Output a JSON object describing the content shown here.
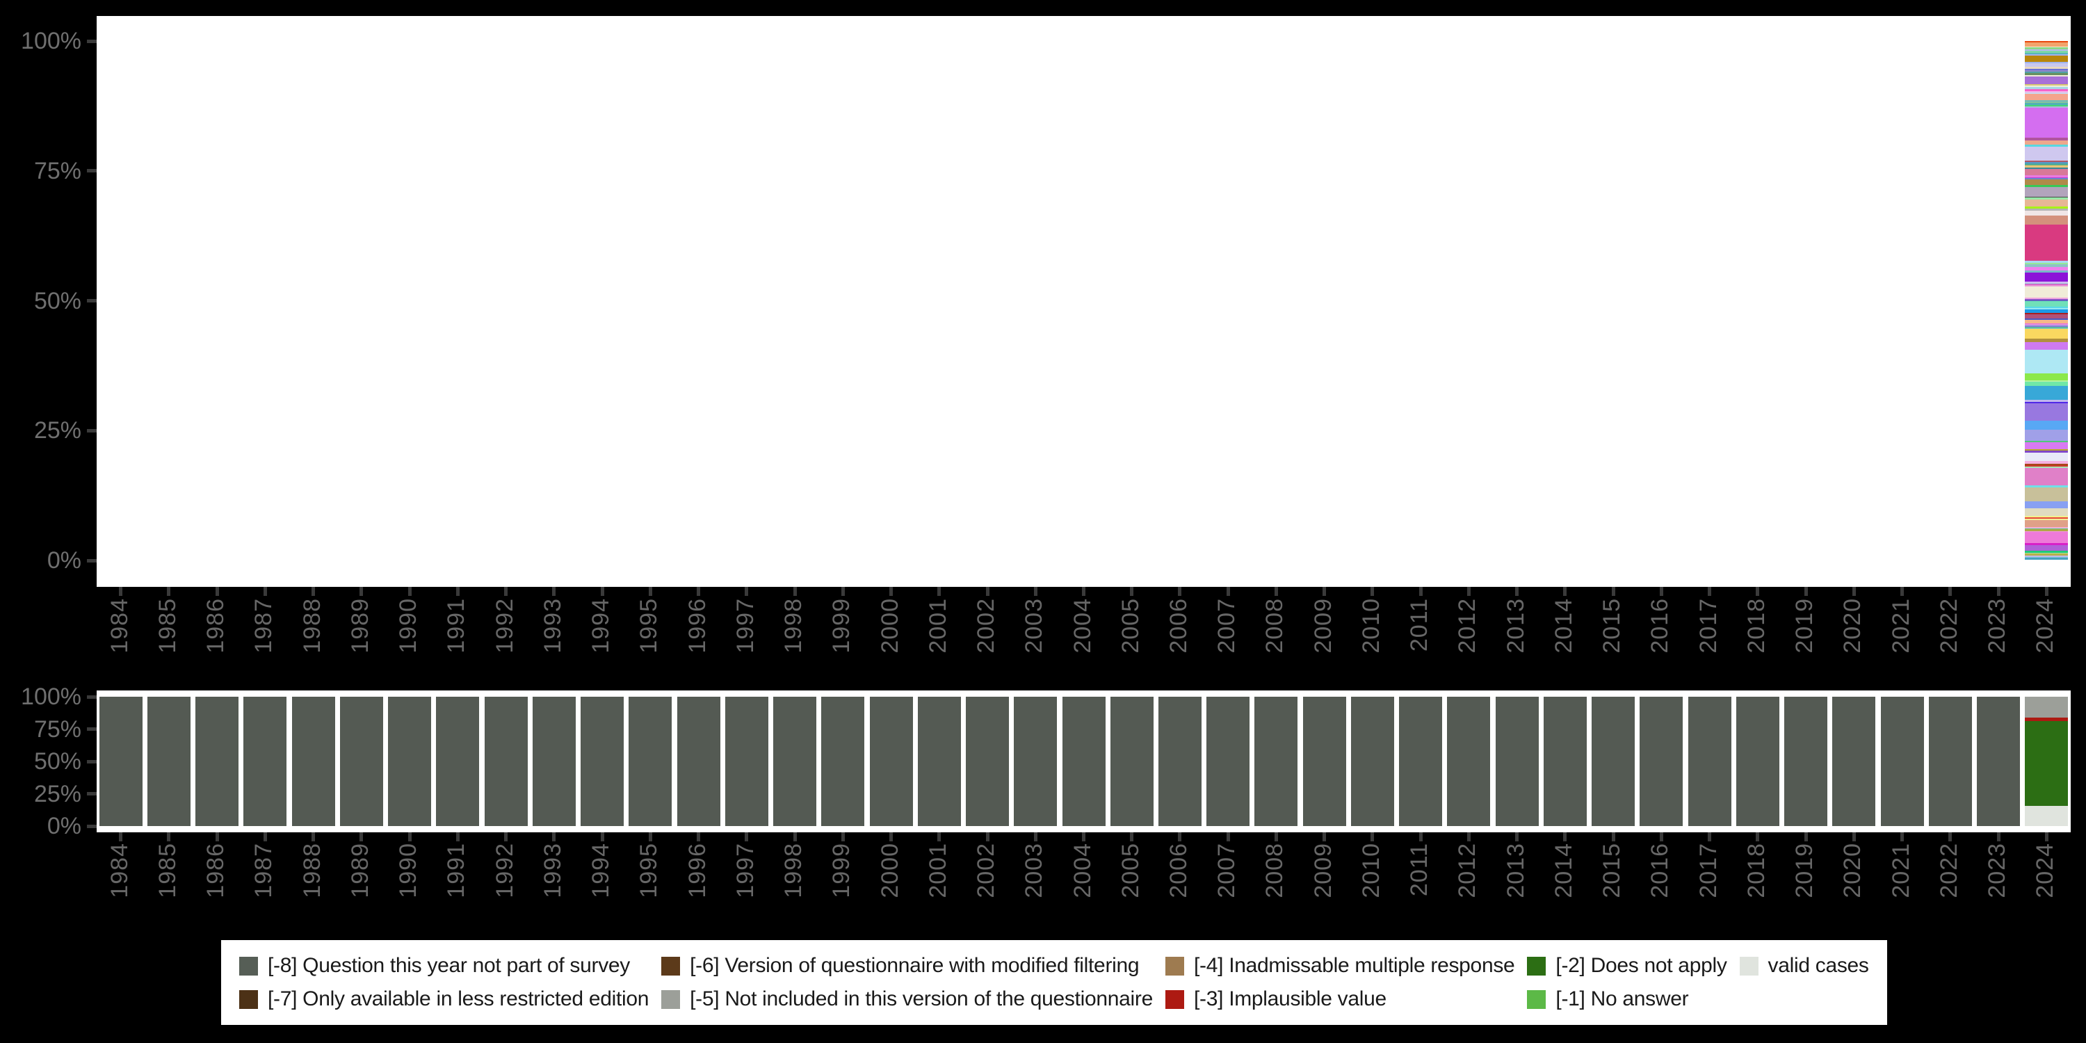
{
  "background_color": "#000000",
  "plot_background": "#ffffff",
  "axis": {
    "tick_label_color": "#6f6f6f",
    "tick_mark_color": "#3a3a3a",
    "y_tick_labels": [
      "100%",
      "75%",
      "50%",
      "25%",
      "0%"
    ],
    "y_tick_values": [
      100,
      75,
      50,
      25,
      0
    ],
    "years": [
      "1984",
      "1985",
      "1986",
      "1987",
      "1988",
      "1989",
      "1990",
      "1991",
      "1992",
      "1993",
      "1994",
      "1995",
      "1996",
      "1997",
      "1998",
      "1999",
      "2000",
      "2001",
      "2002",
      "2003",
      "2004",
      "2005",
      "2006",
      "2007",
      "2008",
      "2009",
      "2010",
      "2011",
      "2012",
      "2013",
      "2014",
      "2015",
      "2016",
      "2017",
      "2018",
      "2019",
      "2020",
      "2021",
      "2022",
      "2023",
      "2024"
    ]
  },
  "legend": {
    "background": "#ffffff",
    "text_color": "#1a1a1a",
    "columns": [
      [
        {
          "label": "[-8] Question this year not part of survey",
          "color": "#565e56"
        },
        {
          "label": "[-7] Only available in less restricted edition",
          "color": "#4c3116"
        }
      ],
      [
        {
          "label": "[-6] Version of questionnaire with modified filtering",
          "color": "#5c3a1a"
        },
        {
          "label": "[-5] Not included in this version of the questionnaire",
          "color": "#9c9f99"
        }
      ],
      [
        {
          "label": "[-4] Inadmissable multiple response",
          "color": "#9e7b50"
        },
        {
          "label": "[-3] Implausible value",
          "color": "#ad1a12"
        }
      ],
      [
        {
          "label": "[-2] Does not apply",
          "color": "#2c6e14"
        },
        {
          "label": "[-1] No answer",
          "color": "#5cb947"
        }
      ],
      [
        {
          "label": "valid cases",
          "color": "#e0e4de"
        }
      ]
    ]
  },
  "chart_data": {
    "top_chart": {
      "type": "bar",
      "stacked": true,
      "title": "",
      "xlabel": "",
      "ylabel": "",
      "ylim": [
        0,
        100
      ],
      "grid": false,
      "x_categories_ref": "axis.years",
      "note": "Distribution of answer categories per survey year; only 2024 contains data — a single stacked bar spanning 0–100% made of many thin category segments. All other years are empty.",
      "bar_2024_segments_top_to_bottom": [
        [
          "#e8470c",
          3
        ],
        [
          "#f2a46c",
          8
        ],
        [
          "#f2e8d0",
          2
        ],
        [
          "#8ad888",
          4
        ],
        [
          "#b8b8f0",
          3
        ],
        [
          "#7ed8a8",
          4
        ],
        [
          "#58b8b8",
          3
        ],
        [
          "#a0b0f0",
          3
        ],
        [
          "#b8860b",
          12
        ],
        [
          "#a0b4f0",
          3
        ],
        [
          "#c8c8f0",
          7
        ],
        [
          "#e8d8c0",
          4
        ],
        [
          "#6870d8",
          3
        ],
        [
          "#9088c8",
          2
        ],
        [
          "#50a0a8",
          4
        ],
        [
          "#689060",
          4
        ],
        [
          "#f0ecd8",
          3
        ],
        [
          "#a870d8",
          15
        ],
        [
          "#d8c870",
          2
        ],
        [
          "#f0eed8",
          3
        ],
        [
          "#a8d8e8",
          4
        ],
        [
          "#e878c8",
          2
        ],
        [
          "#f85ec8",
          3
        ],
        [
          "#f2b0e8",
          3
        ],
        [
          "#c8d8f0",
          3
        ],
        [
          "#f4a48c",
          12
        ],
        [
          "#78bcb4",
          4
        ],
        [
          "#90c890",
          2
        ],
        [
          "#50b0b8",
          4
        ],
        [
          "#40d878",
          3
        ],
        [
          "#b0b4e0",
          3
        ],
        [
          "#d46ef0",
          60
        ],
        [
          "#b0549c",
          5
        ],
        [
          "#eda88c",
          9
        ],
        [
          "#58d8e0",
          4
        ],
        [
          "#cfc8ef",
          28
        ],
        [
          "#b05868",
          2
        ],
        [
          "#5898c8",
          3
        ],
        [
          "#48a8a0",
          3
        ],
        [
          "#80b870",
          2
        ],
        [
          "#e8c478",
          4
        ],
        [
          "#388898",
          3
        ],
        [
          "#d87898",
          12
        ],
        [
          "#e87ae0",
          4
        ],
        [
          "#c83cd8",
          2
        ],
        [
          "#6888c8",
          3
        ],
        [
          "#b08a4a",
          11
        ],
        [
          "#38c858",
          3
        ],
        [
          "#b2a4bc",
          20
        ],
        [
          "#444c44",
          2
        ],
        [
          "#98e8a8",
          4
        ],
        [
          "#e7b795",
          14
        ],
        [
          "#a8f218",
          4
        ],
        [
          "#b4b4b4",
          4
        ],
        [
          "#f0e6e6",
          10
        ],
        [
          "#d4917c",
          18
        ],
        [
          "#d93a80",
          73
        ],
        [
          "#a8d8f2",
          4
        ],
        [
          "#98e898",
          3
        ],
        [
          "#8cc4c4",
          6
        ],
        [
          "#ee82ee",
          6
        ],
        [
          "#78b8c8",
          5
        ],
        [
          "#8c14d8",
          18
        ],
        [
          "#cfc0ee",
          3
        ],
        [
          "#b0b0d8",
          2
        ],
        [
          "#e838c0",
          2
        ],
        [
          "#e8a0d8",
          3
        ],
        [
          "#f0ecd8",
          22
        ],
        [
          "#f2a8e0",
          3
        ],
        [
          "#8858c8",
          2
        ],
        [
          "#4868b8",
          2
        ],
        [
          "#70e0b8",
          11
        ],
        [
          "#58d8e8",
          3
        ],
        [
          "#98e8f2",
          2
        ],
        [
          "#1a9ae8",
          8
        ],
        [
          "#a82020",
          2
        ],
        [
          "#b05078",
          9
        ],
        [
          "#4858c8",
          3
        ],
        [
          "#f4b888",
          7
        ],
        [
          "#e878d8",
          2
        ],
        [
          "#c8b8e8",
          2
        ],
        [
          "#8c78d8",
          2
        ],
        [
          "#58b8a0",
          3
        ],
        [
          "#88c8b8",
          2
        ],
        [
          "#fad860",
          20
        ],
        [
          "#b09040",
          7
        ],
        [
          "#ce7af2",
          15
        ],
        [
          "#aee8f4",
          48
        ],
        [
          "#8ce84a",
          13
        ],
        [
          "#b8f2a0",
          3
        ],
        [
          "#70e8a8",
          8
        ],
        [
          "#38a8d8",
          29
        ],
        [
          "#c0b8ee",
          3
        ],
        [
          "#5028e8",
          4
        ],
        [
          "#9878e0",
          34
        ],
        [
          "#58a8f4",
          19
        ],
        [
          "#a0a0e8",
          22
        ],
        [
          "#50c878",
          3
        ],
        [
          "#d87af2",
          14
        ],
        [
          "#b8a828",
          3
        ],
        [
          "#8048c8",
          3
        ],
        [
          "#e8eaf8",
          18
        ],
        [
          "#f4b0e0",
          5
        ],
        [
          "#a84818",
          3
        ],
        [
          "#c83828",
          2
        ],
        [
          "#a8e8b8",
          4
        ],
        [
          "#e080c8",
          34
        ],
        [
          "#70e0e8",
          4
        ],
        [
          "#c8c09a",
          28
        ],
        [
          "#88a0f2",
          14
        ],
        [
          "#e0dcc0",
          16
        ],
        [
          "#f2f28c",
          3
        ],
        [
          "#e84838",
          2
        ],
        [
          "#f2ee98",
          3
        ],
        [
          "#e0a088",
          14
        ],
        [
          "#f2b0d8",
          3
        ],
        [
          "#58c888",
          2
        ],
        [
          "#b0a848",
          3
        ],
        [
          "#f298e0",
          2
        ],
        [
          "#ee7ad8",
          22
        ],
        [
          "#d820c8",
          4
        ],
        [
          "#b060d8",
          12
        ],
        [
          "#20c878",
          4
        ],
        [
          "#a0e8a0",
          2
        ],
        [
          "#b8b048",
          3
        ],
        [
          "#c0b8e8",
          3
        ],
        [
          "#80c8d8",
          2
        ],
        [
          "#48a0c0",
          4
        ]
      ],
      "segment_weights_note": "weights are relative; renderer normalizes the stack to 100%"
    },
    "bottom_chart": {
      "type": "bar",
      "stacked": true,
      "title": "",
      "xlabel": "",
      "ylabel": "",
      "ylim": [
        0,
        100
      ],
      "grid": false,
      "x_categories_ref": "axis.years",
      "series": [
        {
          "name": "[-8] Question this year not part of survey",
          "color": "#545a53",
          "pct_1984_to_2023": 100,
          "pct_2024": 0
        },
        {
          "name": "[-5] Not included in this version of the questionnaire",
          "color": "#9c9f99",
          "pct_1984_to_2023": 0,
          "pct_2024": 16
        },
        {
          "name": "[-3] Implausible value",
          "color": "#ad1a12",
          "pct_1984_to_2023": 0,
          "pct_2024": 2.7
        },
        {
          "name": "[-2] Does not apply",
          "color": "#2c6e14",
          "pct_1984_to_2023": 0,
          "pct_2024": 65.6
        },
        {
          "name": "valid cases",
          "color": "#e0e4de",
          "pct_1984_to_2023": 0,
          "pct_2024": 15.7
        }
      ],
      "default_bar": {
        "color": "#545a53",
        "pct": 100
      },
      "bar_2024_segments_top_to_bottom": [
        [
          "#9c9f99",
          16
        ],
        [
          "#ad1a12",
          2.7
        ],
        [
          "#2c6e14",
          65.6
        ],
        [
          "#e0e4de",
          15.7
        ]
      ]
    }
  }
}
